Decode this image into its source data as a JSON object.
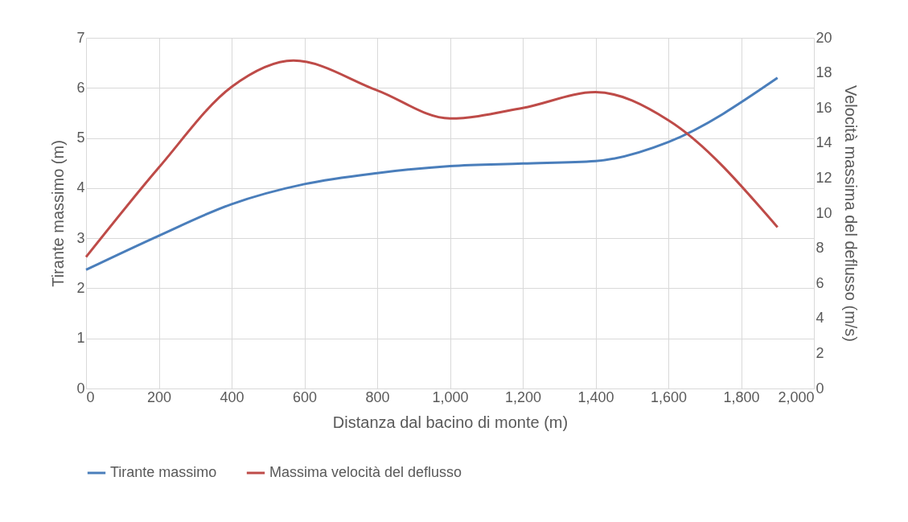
{
  "chart_data": {
    "type": "line",
    "xlabel": "Distanza dal bacino di monte (m)",
    "ylabel": "Tirante massimo (m)",
    "y2label": "Velocità massima del deflusso (m/s)",
    "xlim": [
      0,
      2000
    ],
    "xticks": [
      {
        "value": 0,
        "label": "0"
      },
      {
        "value": 200,
        "label": "200"
      },
      {
        "value": 400,
        "label": "400"
      },
      {
        "value": 600,
        "label": "600"
      },
      {
        "value": 800,
        "label": "800"
      },
      {
        "value": 1000,
        "label": "1,000"
      },
      {
        "value": 1200,
        "label": "1,200"
      },
      {
        "value": 1400,
        "label": "1,400"
      },
      {
        "value": 1600,
        "label": "1,600"
      },
      {
        "value": 1800,
        "label": "1,800"
      },
      {
        "value": 2000,
        "label": "2,000"
      }
    ],
    "ylim": [
      0,
      7
    ],
    "yticks": [
      0,
      1,
      2,
      3,
      4,
      5,
      6,
      7
    ],
    "y2lim": [
      0,
      20
    ],
    "y2ticks": [
      0,
      2,
      4,
      6,
      8,
      10,
      12,
      14,
      16,
      18,
      20
    ],
    "grid": true,
    "legend": "bottom",
    "marker": "none",
    "line_style": "solid",
    "series": [
      {
        "name": "Tirante massimo",
        "color": "#4a7ebb",
        "x": [
          0,
          200,
          400,
          600,
          800,
          1000,
          1200,
          1400,
          1600,
          1900
        ],
        "values": [
          2.37,
          3.05,
          3.68,
          4.08,
          4.3,
          4.44,
          4.49,
          4.54,
          4.92,
          6.2
        ]
      },
      {
        "name": "Massima velocità del deflusso",
        "color": "#be4b48",
        "axis": "y2",
        "x": [
          0,
          200,
          400,
          570,
          800,
          1000,
          1200,
          1400,
          1600,
          1900
        ],
        "values": [
          7.5,
          12.6,
          17.2,
          18.7,
          17.0,
          15.4,
          16.0,
          16.9,
          15.3,
          9.2
        ]
      }
    ]
  }
}
